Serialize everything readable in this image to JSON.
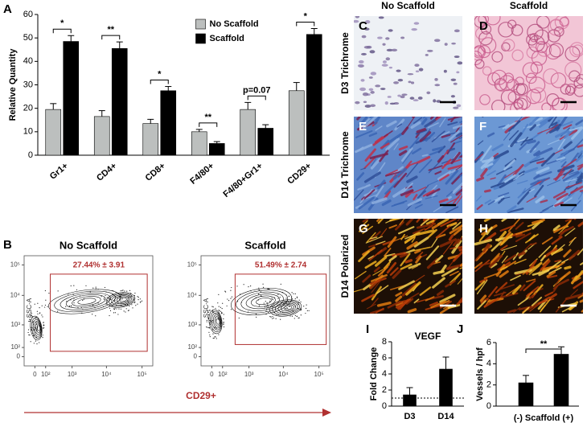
{
  "chart_data": [
    {
      "type": "bar",
      "panel": "A",
      "ylabel": "Relative Quantity",
      "categories": [
        "Gr1+",
        "CD4+",
        "CD8+",
        "F4/80+",
        "F4/80+Gr1+",
        "CD29+"
      ],
      "series": [
        {
          "name": "No Scaffold",
          "color": "#bcbfbe",
          "values": [
            19.5,
            16.5,
            13.5,
            10,
            19.5,
            27.5
          ],
          "errors": [
            2.5,
            2.5,
            1.8,
            1,
            3,
            3.5
          ]
        },
        {
          "name": "Scaffold",
          "color": "#000000",
          "values": [
            48.5,
            45.5,
            27.5,
            5,
            11.5,
            51.5
          ],
          "errors": [
            2.5,
            2.8,
            1.8,
            0.8,
            1.5,
            2.5
          ]
        }
      ],
      "annotations": [
        "*",
        "**",
        "*",
        "**",
        "p=0.07",
        "*"
      ],
      "ylim": [
        0,
        60
      ],
      "yticks": [
        0,
        10,
        20,
        30,
        40,
        50,
        60
      ],
      "legend": "upper center"
    },
    {
      "type": "contour",
      "panel": "B",
      "xlabel": "CD29+",
      "ylabel": "SSC-A",
      "xscale": "symlog",
      "yscale": "symlog",
      "xlim": [
        -100,
        200000
      ],
      "ylim": [
        -100,
        200000
      ],
      "xticks": [
        0,
        {
          "value": 100,
          "label": "10²"
        },
        {
          "value": 1000,
          "label": "10³"
        },
        {
          "value": 10000,
          "label": "10⁴"
        },
        {
          "value": 100000,
          "label": "10⁵"
        }
      ],
      "yticks": [
        0,
        {
          "value": 100,
          "label": "10²"
        },
        {
          "value": 1000,
          "label": "10³"
        },
        {
          "value": 10000,
          "label": "10⁴"
        },
        {
          "value": 100000,
          "label": "10⁵"
        }
      ],
      "gate_color": "#b03030",
      "plots": [
        {
          "title": "No Scaffold",
          "gate_label": "27.44% ± 3.91",
          "gate_x": [
            170,
            140000
          ],
          "gate_y": [
            50,
            50000
          ]
        },
        {
          "title": "Scaffold",
          "gate_label": "51.49% ± 2.74",
          "gate_x": [
            350,
            160000
          ],
          "gate_y": [
            150,
            50000
          ]
        }
      ]
    },
    {
      "type": "bar",
      "panel": "I",
      "title": "VEGF",
      "ylabel": "Fold Change",
      "categories": [
        "D3",
        "D14"
      ],
      "color": "#000000",
      "values": [
        1.4,
        4.6
      ],
      "errors": [
        0.9,
        1.5
      ],
      "ylim": [
        0,
        8
      ],
      "yticks": [
        0,
        2,
        4,
        6,
        8
      ],
      "hline": 1
    },
    {
      "type": "bar",
      "panel": "J",
      "ylabel": "Vessels / hpf",
      "xlabel": "(-) Scaffold (+)",
      "categories": [
        null,
        null
      ],
      "color": "#000000",
      "values": [
        2.2,
        4.9
      ],
      "errors": [
        0.7,
        0.7
      ],
      "ylim": [
        0,
        6
      ],
      "yticks": [
        0,
        2,
        4,
        6
      ],
      "bracket": "**"
    }
  ],
  "histology": {
    "columns": [
      "No Scaffold",
      "Scaffold"
    ],
    "rows": [
      "D3 Trichrome",
      "D14 Trichrome",
      "D14 Polarized"
    ],
    "panels": [
      [
        "C",
        "D"
      ],
      [
        "E",
        "F"
      ],
      [
        "G",
        "H"
      ]
    ]
  }
}
